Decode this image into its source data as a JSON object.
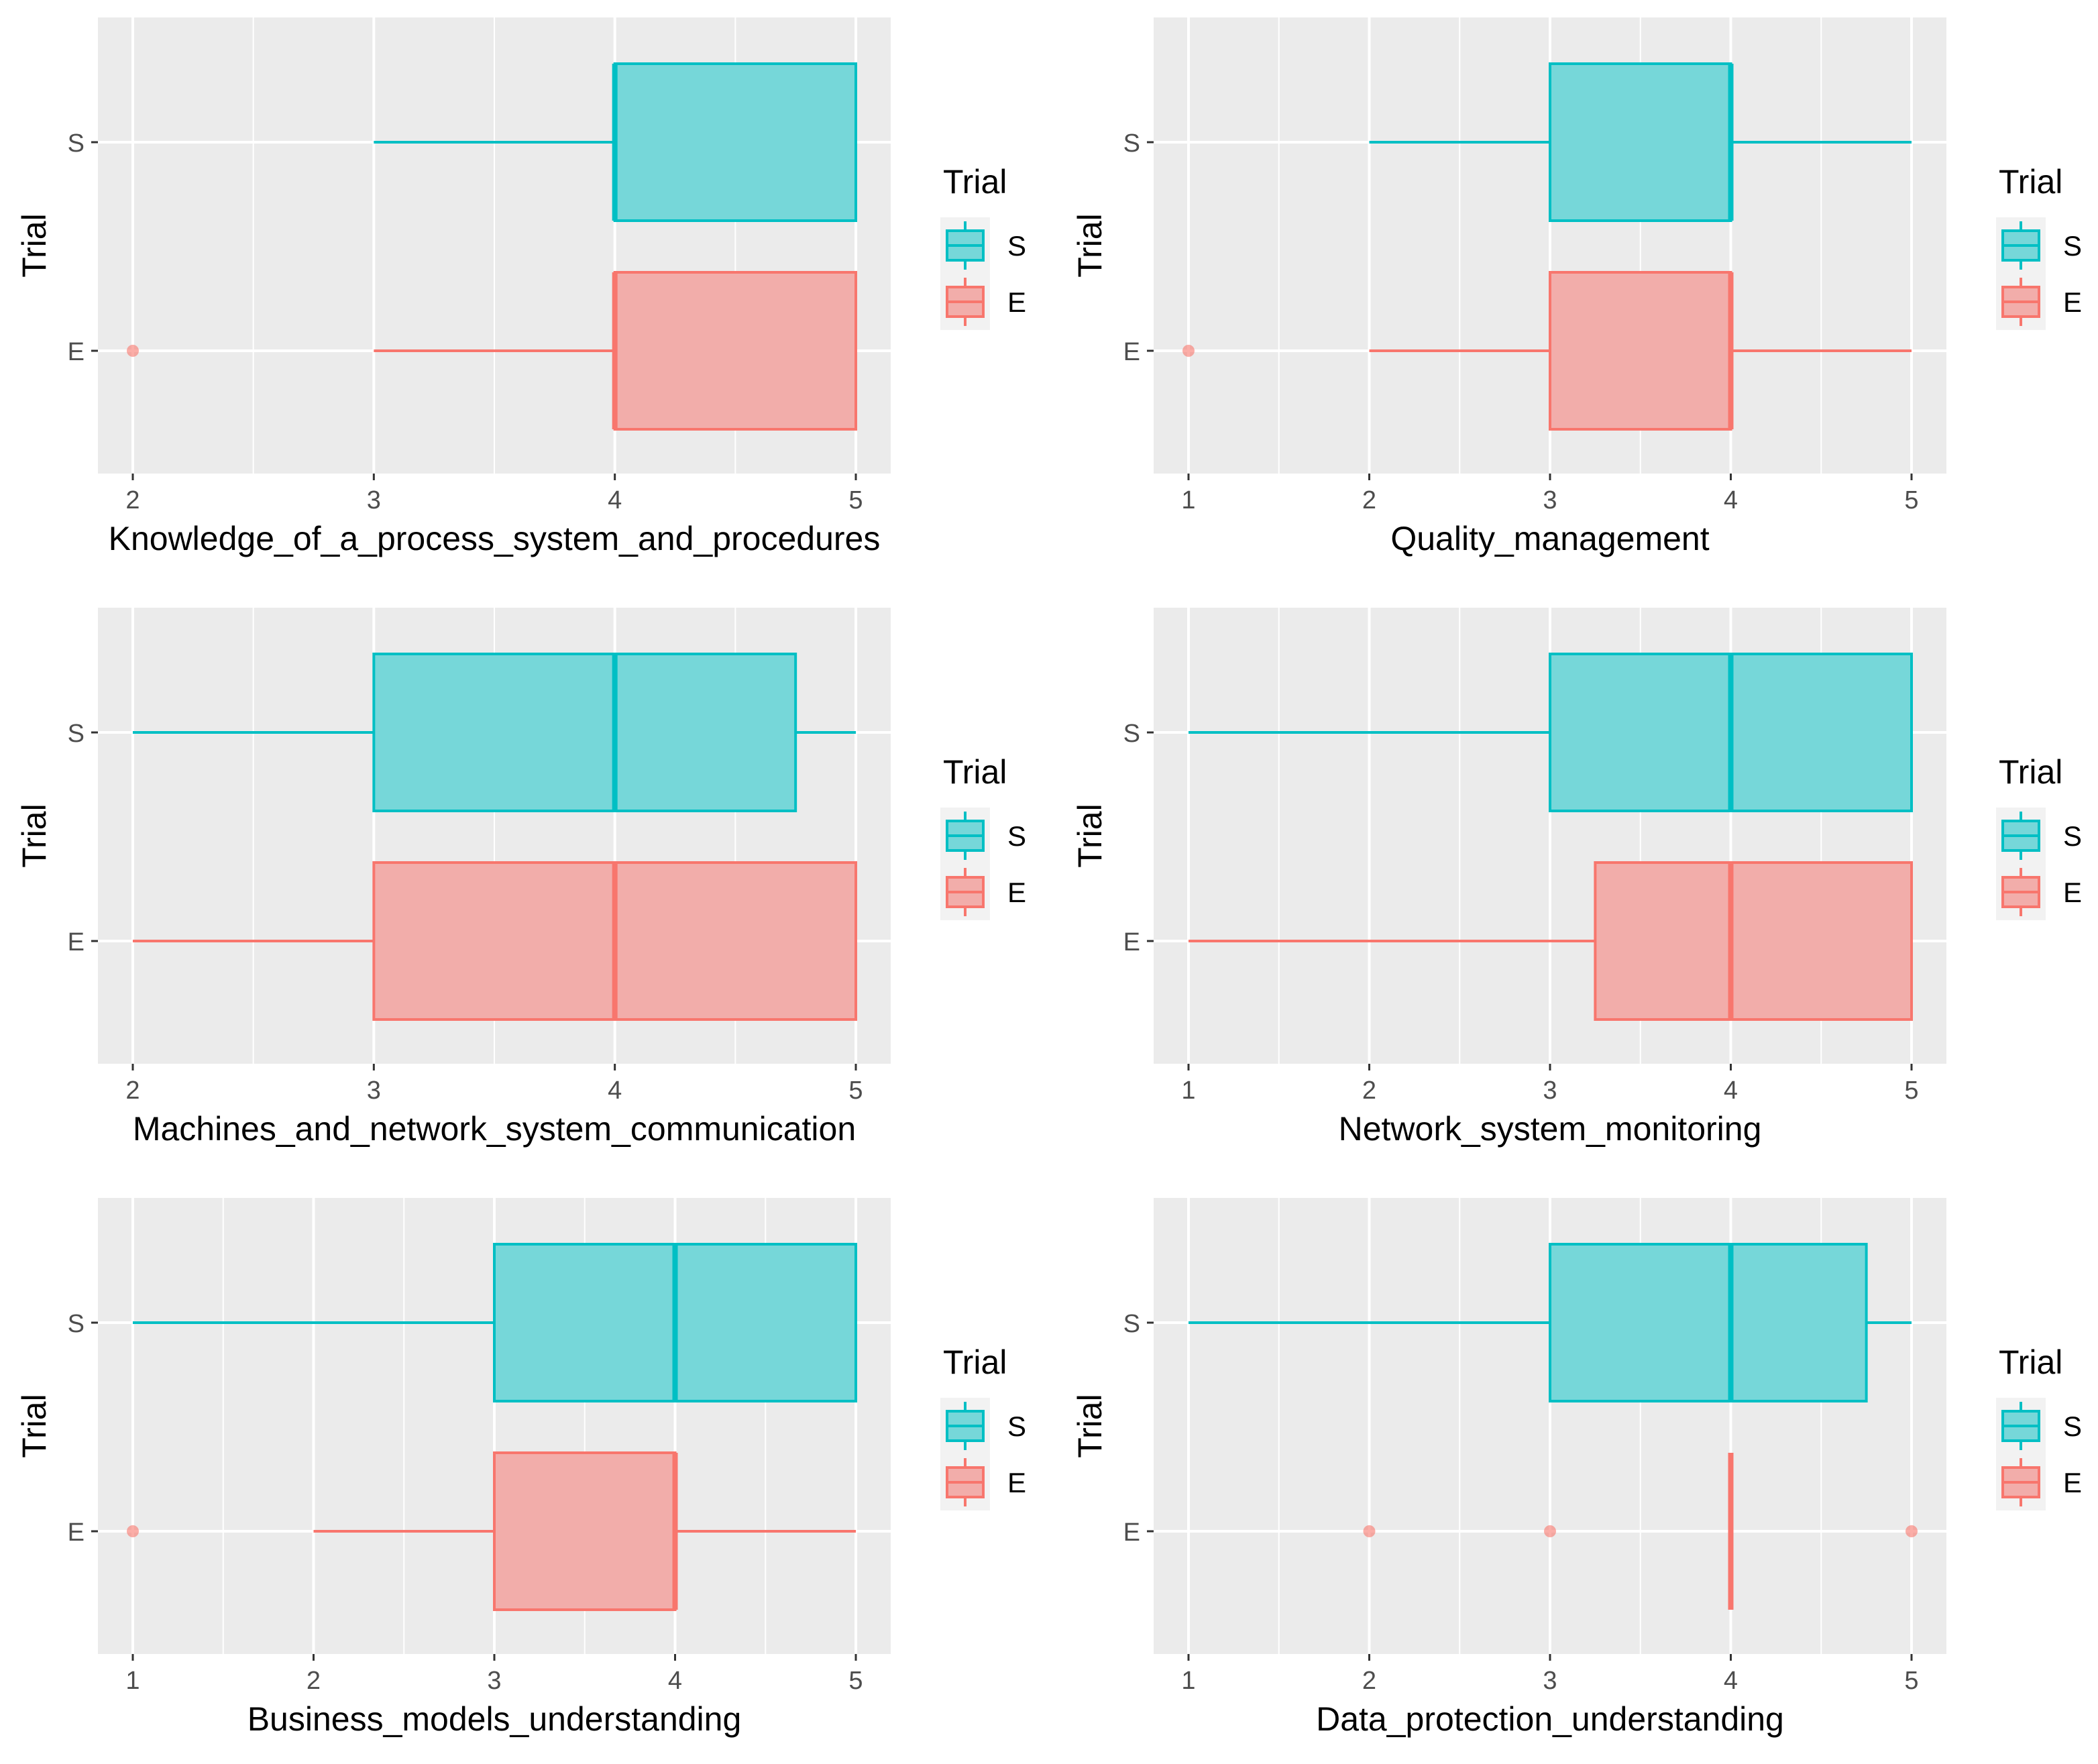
{
  "chart_data": [
    {
      "type": "boxplot",
      "orientation": "horizontal",
      "xlabel": "Knowledge_of_a_process_system_and_procedures",
      "ylabel": "Trial",
      "xlim": [
        2,
        5
      ],
      "x_ticks": [
        2,
        3,
        4,
        5
      ],
      "categories": [
        "E",
        "S"
      ],
      "legend": {
        "title": "Trial",
        "position": "right",
        "entries": [
          "S",
          "E"
        ]
      },
      "series": [
        {
          "name": "S",
          "whisker_low": 3,
          "q1": 4,
          "median": 4,
          "q3": 5,
          "whisker_high": 5,
          "outliers": []
        },
        {
          "name": "E",
          "whisker_low": 3,
          "q1": 4,
          "median": 4,
          "q3": 5,
          "whisker_high": 5,
          "outliers": [
            2
          ]
        }
      ]
    },
    {
      "type": "boxplot",
      "orientation": "horizontal",
      "xlabel": "Quality_management",
      "ylabel": "Trial",
      "xlim": [
        1,
        5
      ],
      "x_ticks": [
        1,
        2,
        3,
        4,
        5
      ],
      "categories": [
        "E",
        "S"
      ],
      "legend": {
        "title": "Trial",
        "position": "right",
        "entries": [
          "S",
          "E"
        ]
      },
      "series": [
        {
          "name": "S",
          "whisker_low": 2,
          "q1": 3,
          "median": 4,
          "q3": 4,
          "whisker_high": 5,
          "outliers": []
        },
        {
          "name": "E",
          "whisker_low": 2,
          "q1": 3,
          "median": 4,
          "q3": 4,
          "whisker_high": 5,
          "outliers": [
            1
          ]
        }
      ]
    },
    {
      "type": "boxplot",
      "orientation": "horizontal",
      "xlabel": "Machines_and_network_system_communication",
      "ylabel": "Trial",
      "xlim": [
        2,
        5
      ],
      "x_ticks": [
        2,
        3,
        4,
        5
      ],
      "categories": [
        "E",
        "S"
      ],
      "legend": {
        "title": "Trial",
        "position": "right",
        "entries": [
          "S",
          "E"
        ]
      },
      "series": [
        {
          "name": "S",
          "whisker_low": 2,
          "q1": 3,
          "median": 4,
          "q3": 4.75,
          "whisker_high": 5,
          "outliers": []
        },
        {
          "name": "E",
          "whisker_low": 2,
          "q1": 3,
          "median": 4,
          "q3": 5,
          "whisker_high": 5,
          "outliers": []
        }
      ]
    },
    {
      "type": "boxplot",
      "orientation": "horizontal",
      "xlabel": "Network_system_monitoring",
      "ylabel": "Trial",
      "xlim": [
        1,
        5
      ],
      "x_ticks": [
        1,
        2,
        3,
        4,
        5
      ],
      "categories": [
        "E",
        "S"
      ],
      "legend": {
        "title": "Trial",
        "position": "right",
        "entries": [
          "S",
          "E"
        ]
      },
      "series": [
        {
          "name": "S",
          "whisker_low": 1,
          "q1": 3,
          "median": 4,
          "q3": 5,
          "whisker_high": 5,
          "outliers": []
        },
        {
          "name": "E",
          "whisker_low": 1,
          "q1": 3.25,
          "median": 4,
          "q3": 5,
          "whisker_high": 5,
          "outliers": []
        }
      ]
    },
    {
      "type": "boxplot",
      "orientation": "horizontal",
      "xlabel": "Business_models_understanding",
      "ylabel": "Trial",
      "xlim": [
        1,
        5
      ],
      "x_ticks": [
        1,
        2,
        3,
        4,
        5
      ],
      "categories": [
        "E",
        "S"
      ],
      "legend": {
        "title": "Trial",
        "position": "right",
        "entries": [
          "S",
          "E"
        ]
      },
      "series": [
        {
          "name": "S",
          "whisker_low": 1,
          "q1": 3,
          "median": 4,
          "q3": 5,
          "whisker_high": 5,
          "outliers": []
        },
        {
          "name": "E",
          "whisker_low": 2,
          "q1": 3,
          "median": 4,
          "q3": 4,
          "whisker_high": 5,
          "outliers": [
            1
          ]
        }
      ]
    },
    {
      "type": "boxplot",
      "orientation": "horizontal",
      "xlabel": "Data_protection_understanding",
      "ylabel": "Trial",
      "xlim": [
        1,
        5
      ],
      "x_ticks": [
        1,
        2,
        3,
        4,
        5
      ],
      "categories": [
        "E",
        "S"
      ],
      "legend": {
        "title": "Trial",
        "position": "right",
        "entries": [
          "S",
          "E"
        ]
      },
      "series": [
        {
          "name": "S",
          "whisker_low": 1,
          "q1": 3,
          "median": 4,
          "q3": 4.75,
          "whisker_high": 5,
          "outliers": []
        },
        {
          "name": "E",
          "whisker_low": 4,
          "q1": 4,
          "median": 4,
          "q3": 4,
          "whisker_high": 4,
          "outliers": [
            2,
            3,
            5
          ]
        }
      ]
    }
  ],
  "colors": {
    "S_line": "#00BFC4",
    "S_fill": "#76D7D9",
    "E_line": "#F8766D",
    "E_fill": "#F2ADAA",
    "panel_bg": "#EBEBEB",
    "grid": "#FFFFFF",
    "axis_text": "#4D4D4D",
    "title_text": "#000000"
  }
}
